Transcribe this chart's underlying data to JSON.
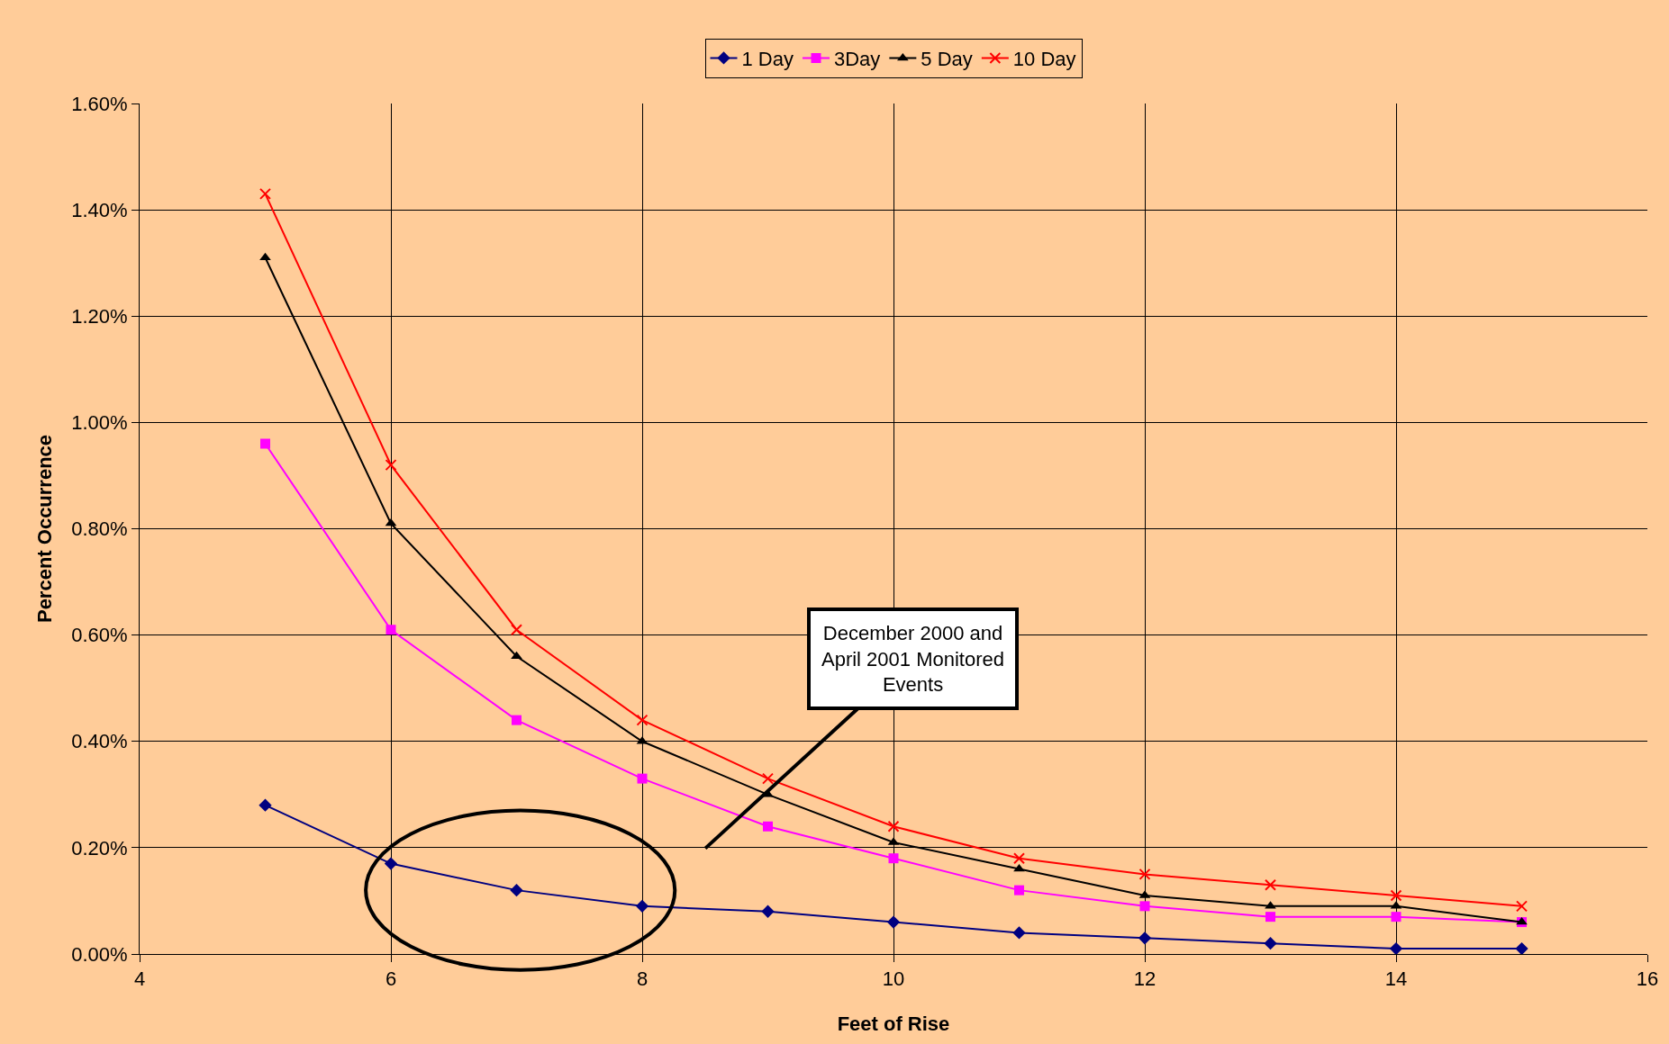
{
  "chart_data": {
    "type": "line",
    "xlabel": "Feet of Rise",
    "ylabel": "Percent Occurrence",
    "x": [
      5,
      6,
      7,
      8,
      9,
      10,
      11,
      12,
      13,
      14,
      15
    ],
    "series": [
      {
        "name": "1 Day",
        "color": "#000080",
        "marker": "diamond",
        "values": [
          0.28,
          0.17,
          0.12,
          0.09,
          0.08,
          0.06,
          0.04,
          0.03,
          0.02,
          0.01,
          0.01
        ]
      },
      {
        "name": "3Day",
        "color": "#ff00ff",
        "marker": "square",
        "values": [
          0.96,
          0.61,
          0.44,
          0.33,
          0.24,
          0.18,
          0.12,
          0.09,
          0.07,
          0.07,
          0.06
        ]
      },
      {
        "name": "5 Day",
        "color": "#000000",
        "marker": "triangle",
        "values": [
          1.31,
          0.81,
          0.56,
          0.4,
          0.3,
          0.21,
          0.16,
          0.11,
          0.09,
          0.09,
          0.06
        ]
      },
      {
        "name": "10 Day",
        "color": "#ff0000",
        "marker": "cross",
        "values": [
          1.43,
          0.92,
          0.61,
          0.44,
          0.33,
          0.24,
          0.18,
          0.15,
          0.13,
          0.11,
          0.09
        ]
      }
    ],
    "xlim": [
      4,
      16
    ],
    "xticks": [
      4,
      6,
      8,
      10,
      12,
      14,
      16
    ],
    "ylim": [
      0,
      1.6
    ],
    "yticks": [
      {
        "value": 0,
        "label": "0.00%"
      },
      {
        "value": 0.2,
        "label": "0.20%"
      },
      {
        "value": 0.4,
        "label": "0.40%"
      },
      {
        "value": 0.6,
        "label": "0.60%"
      },
      {
        "value": 0.8,
        "label": "0.80%"
      },
      {
        "value": 1.0,
        "label": "1.00%"
      },
      {
        "value": 1.2,
        "label": "1.20%"
      },
      {
        "value": 1.4,
        "label": "1.40%"
      },
      {
        "value": 1.6,
        "label": "1.60%"
      }
    ],
    "annotations": [
      {
        "text": "December 2000 and\nApril 2001 Monitored\nEvents",
        "x": 8,
        "y": 0.09
      }
    ],
    "grid": true,
    "legend": "top",
    "line_style": "solid"
  }
}
